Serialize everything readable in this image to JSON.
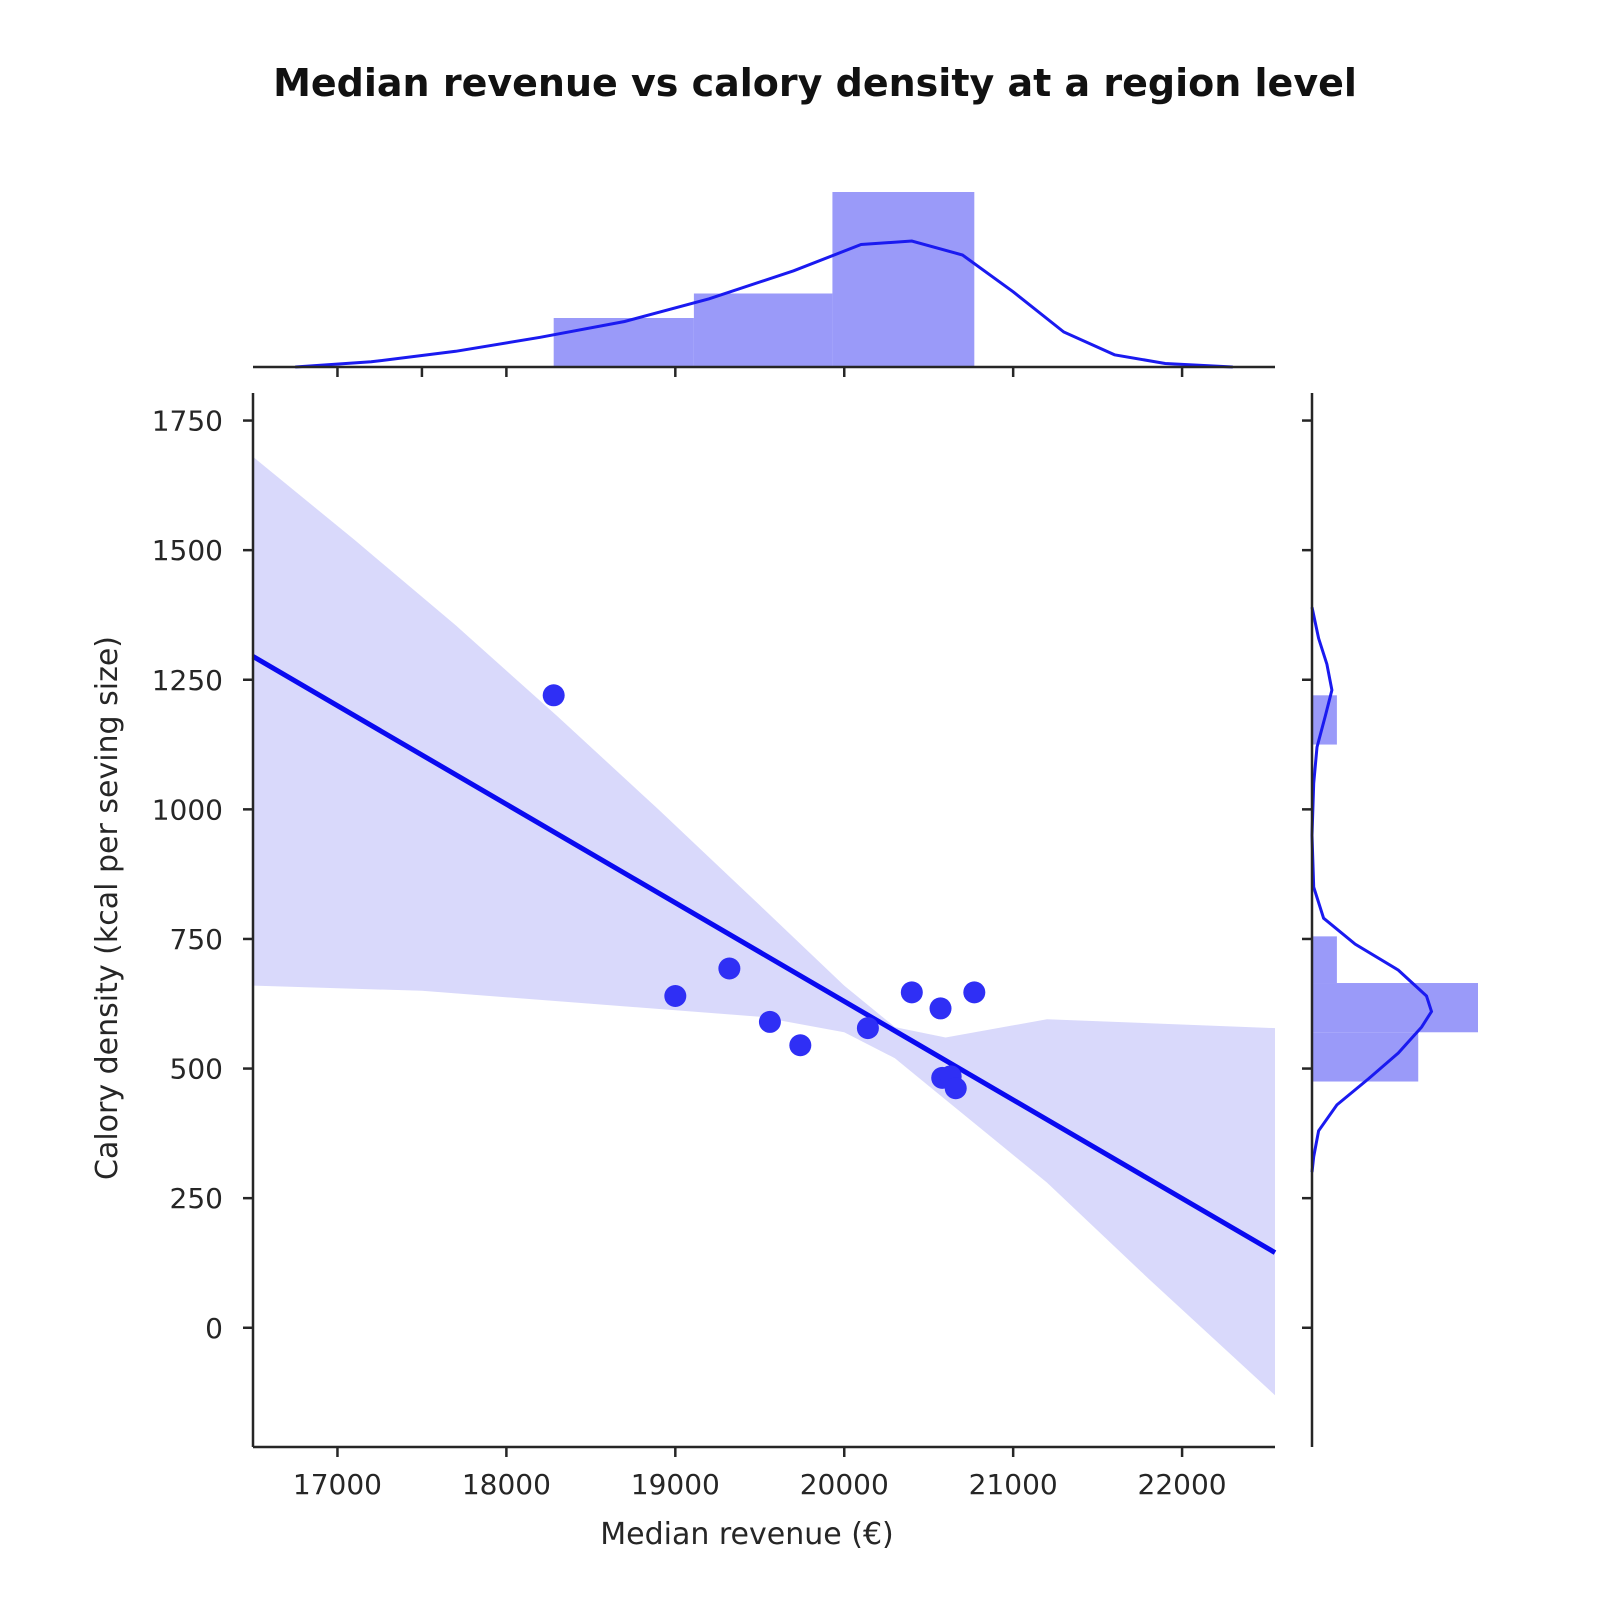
{
  "chart_data": {
    "type": "scatter",
    "title": "Median revenue vs calory density at a region level",
    "xlabel": "Median revenue (€)",
    "ylabel": "Calory density (kcal per seving size)",
    "xlim": [
      16500,
      22550
    ],
    "ylim": [
      -230,
      1780
    ],
    "x_ticks": [
      17000,
      18000,
      19000,
      20000,
      21000,
      22000
    ],
    "y_ticks": [
      0,
      250,
      500,
      750,
      1000,
      1250,
      1500,
      1750
    ],
    "grid": false,
    "legend": "none",
    "points": [
      {
        "x": 18280,
        "y": 1220
      },
      {
        "x": 19000,
        "y": 640
      },
      {
        "x": 19320,
        "y": 693
      },
      {
        "x": 19560,
        "y": 590
      },
      {
        "x": 19740,
        "y": 545
      },
      {
        "x": 20140,
        "y": 578
      },
      {
        "x": 20400,
        "y": 647
      },
      {
        "x": 20570,
        "y": 616
      },
      {
        "x": 20580,
        "y": 482
      },
      {
        "x": 20630,
        "y": 485
      },
      {
        "x": 20660,
        "y": 462
      },
      {
        "x": 20770,
        "y": 647
      }
    ],
    "regression": {
      "x": [
        16500,
        22550
      ],
      "y": [
        1295,
        145
      ],
      "ci_upper": [
        {
          "x": 16500,
          "y": 1680
        },
        {
          "x": 17100,
          "y": 1520
        },
        {
          "x": 17700,
          "y": 1355
        },
        {
          "x": 18300,
          "y": 1180
        },
        {
          "x": 18900,
          "y": 1000
        },
        {
          "x": 19500,
          "y": 815
        },
        {
          "x": 20000,
          "y": 660
        },
        {
          "x": 20300,
          "y": 580
        },
        {
          "x": 20600,
          "y": 560
        },
        {
          "x": 21200,
          "y": 595
        },
        {
          "x": 22550,
          "y": 578
        }
      ],
      "ci_lower": [
        {
          "x": 16500,
          "y": 660
        },
        {
          "x": 17500,
          "y": 650
        },
        {
          "x": 18500,
          "y": 625
        },
        {
          "x": 19500,
          "y": 600
        },
        {
          "x": 20000,
          "y": 570
        },
        {
          "x": 20300,
          "y": 520
        },
        {
          "x": 20600,
          "y": 440
        },
        {
          "x": 21200,
          "y": 280
        },
        {
          "x": 21800,
          "y": 95
        },
        {
          "x": 22550,
          "y": -130
        }
      ]
    },
    "marginal_x": {
      "bins": [
        {
          "start": 18280,
          "end": 19110,
          "height": 0.28
        },
        {
          "start": 19110,
          "end": 19930,
          "height": 0.42
        },
        {
          "start": 19930,
          "end": 20770,
          "height": 1.0
        }
      ],
      "kde": [
        {
          "x": 16750,
          "d": 0.0
        },
        {
          "x": 17200,
          "d": 0.03
        },
        {
          "x": 17700,
          "d": 0.09
        },
        {
          "x": 18200,
          "d": 0.17
        },
        {
          "x": 18700,
          "d": 0.26
        },
        {
          "x": 19200,
          "d": 0.39
        },
        {
          "x": 19700,
          "d": 0.55
        },
        {
          "x": 20100,
          "d": 0.7
        },
        {
          "x": 20400,
          "d": 0.72
        },
        {
          "x": 20700,
          "d": 0.64
        },
        {
          "x": 21000,
          "d": 0.43
        },
        {
          "x": 21300,
          "d": 0.2
        },
        {
          "x": 21600,
          "d": 0.07
        },
        {
          "x": 21900,
          "d": 0.02
        },
        {
          "x": 22300,
          "d": 0.0
        }
      ]
    },
    "marginal_y": {
      "bins": [
        {
          "start": 1125,
          "end": 1220,
          "height": 0.15
        },
        {
          "start": 475,
          "end": 570,
          "height": 0.64
        },
        {
          "start": 570,
          "end": 665,
          "height": 1.0
        },
        {
          "start": 665,
          "end": 755,
          "height": 0.15
        }
      ],
      "kde": [
        {
          "y": 1390,
          "d": 0.0
        },
        {
          "y": 1330,
          "d": 0.04
        },
        {
          "y": 1280,
          "d": 0.09
        },
        {
          "y": 1230,
          "d": 0.12
        },
        {
          "y": 1180,
          "d": 0.08
        },
        {
          "y": 1120,
          "d": 0.03
        },
        {
          "y": 1050,
          "d": 0.01
        },
        {
          "y": 950,
          "d": 0.0
        },
        {
          "y": 850,
          "d": 0.01
        },
        {
          "y": 790,
          "d": 0.07
        },
        {
          "y": 740,
          "d": 0.26
        },
        {
          "y": 690,
          "d": 0.52
        },
        {
          "y": 640,
          "d": 0.69
        },
        {
          "y": 610,
          "d": 0.72
        },
        {
          "y": 580,
          "d": 0.66
        },
        {
          "y": 530,
          "d": 0.52
        },
        {
          "y": 480,
          "d": 0.34
        },
        {
          "y": 430,
          "d": 0.15
        },
        {
          "y": 380,
          "d": 0.04
        },
        {
          "y": 330,
          "d": 0.01
        },
        {
          "y": 300,
          "d": 0.0
        }
      ]
    },
    "colors": {
      "points": "#2f2ff5",
      "line": "#0a0af0",
      "ci_band": "#d9d9fb",
      "hist": "#9a9af9",
      "kde": "#1a1af0",
      "axes": "#262626"
    }
  }
}
